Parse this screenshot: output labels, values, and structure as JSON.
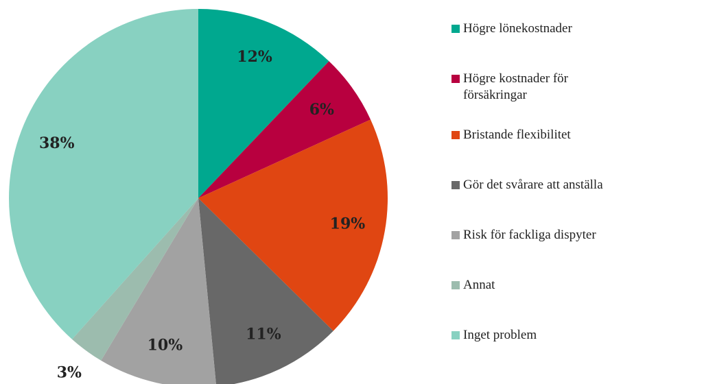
{
  "chart_data": {
    "type": "pie",
    "categories": [
      "Högre lönekostnader",
      "Högre kostnader för försäkringar",
      "Bristande flexibilitet",
      "Gör det svårare att anställa",
      "Risk för fackliga dispyter",
      "Annat",
      "Inget problem"
    ],
    "values": [
      12,
      6,
      19,
      11,
      10,
      3,
      38
    ],
    "value_labels": [
      "12%",
      "6%",
      "19%",
      "11%",
      "10%",
      "3%",
      "38%"
    ],
    "colors": [
      "#00a88f",
      "#b8003f",
      "#e04612",
      "#686868",
      "#a2a2a2",
      "#9cbcae",
      "#88d1c1"
    ],
    "legend": "right"
  }
}
